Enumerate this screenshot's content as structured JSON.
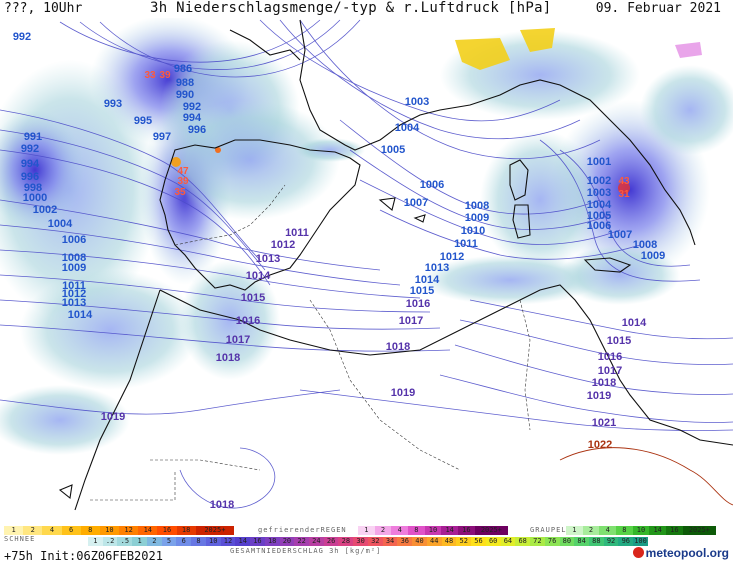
{
  "header": {
    "left": "???, 10Uhr",
    "title": "3h Niederschlagsmenge/-typ & r.Luftdruck [hPa]",
    "date": "09. Februar 2021"
  },
  "isobars": [
    {
      "label": "992",
      "tx": 22,
      "ty": 40,
      "color": "#2255cc"
    },
    {
      "label": "986",
      "tx": 183,
      "ty": 72,
      "color": "#2255cc"
    },
    {
      "label": "988",
      "tx": 185,
      "ty": 86,
      "color": "#2255cc"
    },
    {
      "label": "990",
      "tx": 185,
      "ty": 98,
      "color": "#2255cc"
    },
    {
      "label": "993",
      "tx": 113,
      "ty": 107,
      "color": "#2255cc"
    },
    {
      "label": "992",
      "tx": 192,
      "ty": 110,
      "color": "#2255cc"
    },
    {
      "label": "994",
      "tx": 192,
      "ty": 121,
      "color": "#2255cc"
    },
    {
      "label": "995",
      "tx": 143,
      "ty": 124,
      "color": "#2255cc"
    },
    {
      "label": "996",
      "tx": 197,
      "ty": 133,
      "color": "#2255cc"
    },
    {
      "label": "997",
      "tx": 162,
      "ty": 140,
      "color": "#2255cc"
    },
    {
      "label": "991",
      "tx": 33,
      "ty": 140,
      "color": "#2255cc"
    },
    {
      "label": "992",
      "tx": 30,
      "ty": 152,
      "color": "#2255cc"
    },
    {
      "label": "994",
      "tx": 30,
      "ty": 167,
      "color": "#2255cc"
    },
    {
      "label": "996",
      "tx": 30,
      "ty": 180,
      "color": "#2255cc"
    },
    {
      "label": "998",
      "tx": 33,
      "ty": 191,
      "color": "#2255cc"
    },
    {
      "label": "1000",
      "tx": 35,
      "ty": 201,
      "color": "#2255cc"
    },
    {
      "label": "1002",
      "tx": 45,
      "ty": 213,
      "color": "#2255cc"
    },
    {
      "label": "1004",
      "tx": 60,
      "ty": 227,
      "color": "#2255cc"
    },
    {
      "label": "1006",
      "tx": 74,
      "ty": 243,
      "color": "#2255cc"
    },
    {
      "label": "1008",
      "tx": 74,
      "ty": 261,
      "color": "#2255cc"
    },
    {
      "label": "1009",
      "tx": 74,
      "ty": 271,
      "color": "#2255cc"
    },
    {
      "label": "1011",
      "tx": 74,
      "ty": 289,
      "color": "#2255cc"
    },
    {
      "label": "1012",
      "tx": 74,
      "ty": 297,
      "color": "#2255cc"
    },
    {
      "label": "1013",
      "tx": 74,
      "ty": 306,
      "color": "#2255cc"
    },
    {
      "label": "1014",
      "tx": 80,
      "ty": 318,
      "color": "#2255cc"
    },
    {
      "label": "1003",
      "tx": 417,
      "ty": 105,
      "color": "#2255cc"
    },
    {
      "label": "1004",
      "tx": 407,
      "ty": 131,
      "color": "#2255cc"
    },
    {
      "label": "1005",
      "tx": 393,
      "ty": 153,
      "color": "#2255cc"
    },
    {
      "label": "1006",
      "tx": 432,
      "ty": 188,
      "color": "#2255cc"
    },
    {
      "label": "1007",
      "tx": 416,
      "ty": 206,
      "color": "#2255cc"
    },
    {
      "label": "1008",
      "tx": 477,
      "ty": 209,
      "color": "#2255cc"
    },
    {
      "label": "1009",
      "tx": 477,
      "ty": 221,
      "color": "#2255cc"
    },
    {
      "label": "1010",
      "tx": 473,
      "ty": 234,
      "color": "#2255cc"
    },
    {
      "label": "1011",
      "tx": 466,
      "ty": 247,
      "color": "#2255cc"
    },
    {
      "label": "1012",
      "tx": 452,
      "ty": 260,
      "color": "#2255cc"
    },
    {
      "label": "1013",
      "tx": 437,
      "ty": 271,
      "color": "#2255cc"
    },
    {
      "label": "1014",
      "tx": 427,
      "ty": 283,
      "color": "#2255cc"
    },
    {
      "label": "1015",
      "tx": 422,
      "ty": 294,
      "color": "#2255cc"
    },
    {
      "label": "1016",
      "tx": 418,
      "ty": 307,
      "color": "#5533aa"
    },
    {
      "label": "1017",
      "tx": 411,
      "ty": 324,
      "color": "#5533aa"
    },
    {
      "label": "1018",
      "tx": 398,
      "ty": 350,
      "color": "#5533aa"
    },
    {
      "label": "1019",
      "tx": 403,
      "ty": 396,
      "color": "#5533aa"
    },
    {
      "label": "1011",
      "tx": 297,
      "ty": 236,
      "color": "#5533aa"
    },
    {
      "label": "1012",
      "tx": 283,
      "ty": 248,
      "color": "#5533aa"
    },
    {
      "label": "1013",
      "tx": 268,
      "ty": 262,
      "color": "#5533aa"
    },
    {
      "label": "1014",
      "tx": 258,
      "ty": 279,
      "color": "#5533aa"
    },
    {
      "label": "1015",
      "tx": 253,
      "ty": 301,
      "color": "#5533aa"
    },
    {
      "label": "1016",
      "tx": 248,
      "ty": 324,
      "color": "#5533aa"
    },
    {
      "label": "1017",
      "tx": 238,
      "ty": 343,
      "color": "#5533aa"
    },
    {
      "label": "1018",
      "tx": 228,
      "ty": 361,
      "color": "#5533aa"
    },
    {
      "label": "1019",
      "tx": 113,
      "ty": 420,
      "color": "#5533aa"
    },
    {
      "label": "1018",
      "tx": 222,
      "ty": 508,
      "color": "#5533aa"
    },
    {
      "label": "1001",
      "tx": 599,
      "ty": 165,
      "color": "#2255cc"
    },
    {
      "label": "1002",
      "tx": 599,
      "ty": 184,
      "color": "#2255cc"
    },
    {
      "label": "1003",
      "tx": 599,
      "ty": 196,
      "color": "#2255cc"
    },
    {
      "label": "1004",
      "tx": 599,
      "ty": 208,
      "color": "#2255cc"
    },
    {
      "label": "1005",
      "tx": 599,
      "ty": 219,
      "color": "#2255cc"
    },
    {
      "label": "1006",
      "tx": 599,
      "ty": 229,
      "color": "#2255cc"
    },
    {
      "label": "1007",
      "tx": 620,
      "ty": 238,
      "color": "#2255cc"
    },
    {
      "label": "1008",
      "tx": 645,
      "ty": 248,
      "color": "#2255cc"
    },
    {
      "label": "1009",
      "tx": 653,
      "ty": 259,
      "color": "#2255cc"
    },
    {
      "label": "1014",
      "tx": 634,
      "ty": 326,
      "color": "#5533aa"
    },
    {
      "label": "1015",
      "tx": 619,
      "ty": 344,
      "color": "#5533aa"
    },
    {
      "label": "1016",
      "tx": 610,
      "ty": 360,
      "color": "#5533aa"
    },
    {
      "label": "1017",
      "tx": 610,
      "ty": 374,
      "color": "#5533aa"
    },
    {
      "label": "1018",
      "tx": 604,
      "ty": 386,
      "color": "#5533aa"
    },
    {
      "label": "1019",
      "tx": 599,
      "ty": 399,
      "color": "#5533aa"
    },
    {
      "label": "1021",
      "tx": 604,
      "ty": 426,
      "color": "#5533aa"
    },
    {
      "label": "1022",
      "tx": 600,
      "ty": 448,
      "color": "#aa3311"
    }
  ],
  "precip_values": [
    {
      "label": "33",
      "tx": 150,
      "ty": 78
    },
    {
      "label": "39",
      "tx": 165,
      "ty": 78
    },
    {
      "label": "47",
      "tx": 183,
      "ty": 174
    },
    {
      "label": "39",
      "tx": 183,
      "ty": 184
    },
    {
      "label": "35",
      "tx": 180,
      "ty": 195
    },
    {
      "label": "43",
      "tx": 624,
      "ty": 184
    },
    {
      "label": "31",
      "tx": 624,
      "ty": 197
    }
  ],
  "legend": {
    "schnee_label": "SCHNEE",
    "schnee_values": [
      "1",
      "2",
      "4",
      "6",
      "8",
      "10",
      "12",
      "14",
      "16",
      "18",
      "2025+"
    ],
    "regen_values": [
      "1",
      ".2",
      ".5",
      "1",
      "2",
      "5",
      "6",
      "8",
      "10",
      "12",
      "14",
      "16",
      "18",
      "20",
      "22",
      "24",
      "26",
      "28",
      "30",
      "32",
      "34",
      "36",
      "40",
      "44",
      "48",
      "52",
      "56",
      "60",
      "64",
      "68",
      "72",
      "76",
      "80",
      "84",
      "88",
      "92",
      "96",
      "100"
    ],
    "gefrieren_label": "gefrierenderREGEN",
    "gefrieren_values": [
      "1",
      "2",
      "4",
      "8",
      "10",
      "14",
      "16",
      "2025+"
    ],
    "graupel_label": "GRAUPEL",
    "graupel_values": [
      "1",
      "2",
      "4",
      "8",
      "10",
      "14",
      "16",
      "2025+"
    ],
    "gesamt_label": "GESAMTNIEDERSCHLAG 3h [kg/m²]"
  },
  "footer": {
    "init": "+75h Init:06Z06FEB2021"
  },
  "logo": "meteopool.org",
  "colors": {
    "isobar": "#4d4dc9",
    "coast": "#111111",
    "rain_light": "#9fd4d8",
    "rain_mid": "#8899ee",
    "rain_heavy": "#4a3fcf",
    "snow": "#f5d000",
    "high": "#aa3311"
  }
}
